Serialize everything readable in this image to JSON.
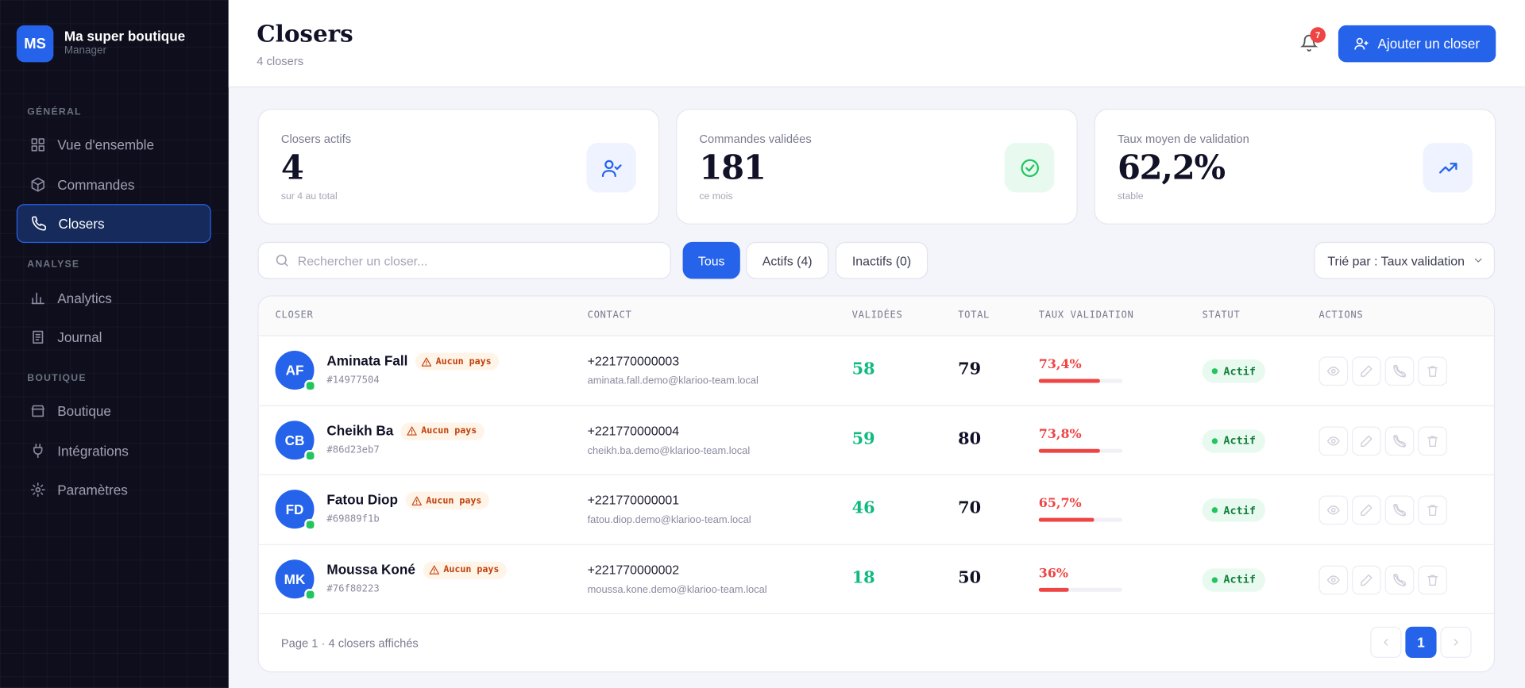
{
  "sidebar": {
    "brand": {
      "initials": "MS",
      "name": "Ma super boutique",
      "role": "Manager"
    },
    "sections": [
      {
        "label": "GÉNÉRAL",
        "items": [
          "Vue d'ensemble",
          "Commandes",
          "Closers"
        ]
      },
      {
        "label": "ANALYSE",
        "items": [
          "Analytics",
          "Journal"
        ]
      },
      {
        "label": "BOUTIQUE",
        "items": [
          "Boutique",
          "Intégrations",
          "Paramètres"
        ]
      }
    ]
  },
  "header": {
    "title": "Closers",
    "subtitle": "4 closers",
    "notifications": 7,
    "add_button": "Ajouter un closer"
  },
  "stats": [
    {
      "label": "Closers actifs",
      "value": "4",
      "sub": "sur 4 au total"
    },
    {
      "label": "Commandes validées",
      "value": "181",
      "sub": "ce mois"
    },
    {
      "label": "Taux moyen de validation",
      "value": "62,2%",
      "sub": "stable"
    }
  ],
  "toolbar": {
    "search_placeholder": "Rechercher un closer...",
    "filters": [
      "Tous",
      "Actifs (4)",
      "Inactifs (0)"
    ],
    "sort": "Trié par : Taux validation"
  },
  "table": {
    "columns": [
      "CLOSER",
      "CONTACT",
      "VALIDÉES",
      "TOTAL",
      "TAUX VALIDATION",
      "STATUT",
      "ACTIONS"
    ],
    "rows": [
      {
        "initials": "AF",
        "name": "Aminata Fall",
        "warning": "Aucun pays",
        "id": "#14977504",
        "phone": "+221770000003",
        "email": "aminata.fall.demo@klarioo-team.local",
        "validated": 58,
        "total": 79,
        "rate": {
          "value": 73.4,
          "label": "73,4%"
        },
        "status": "Actif"
      },
      {
        "initials": "CB",
        "name": "Cheikh Ba",
        "warning": "Aucun pays",
        "id": "#86d23eb7",
        "phone": "+221770000004",
        "email": "cheikh.ba.demo@klarioo-team.local",
        "validated": 59,
        "total": 80,
        "rate": {
          "value": 73.8,
          "label": "73,8%"
        },
        "status": "Actif"
      },
      {
        "initials": "FD",
        "name": "Fatou Diop",
        "warning": "Aucun pays",
        "id": "#69889f1b",
        "phone": "+221770000001",
        "email": "fatou.diop.demo@klarioo-team.local",
        "validated": 46,
        "total": 70,
        "rate": {
          "value": 65.7,
          "label": "65,7%"
        },
        "status": "Actif"
      },
      {
        "initials": "MK",
        "name": "Moussa Koné",
        "warning": "Aucun pays",
        "id": "#76f80223",
        "phone": "+221770000002",
        "email": "moussa.kone.demo@klarioo-team.local",
        "validated": 18,
        "total": 50,
        "rate": {
          "value": 36,
          "label": "36%"
        },
        "status": "Actif"
      }
    ],
    "footer": "Page 1 · 4 closers affichés",
    "page": 1
  }
}
